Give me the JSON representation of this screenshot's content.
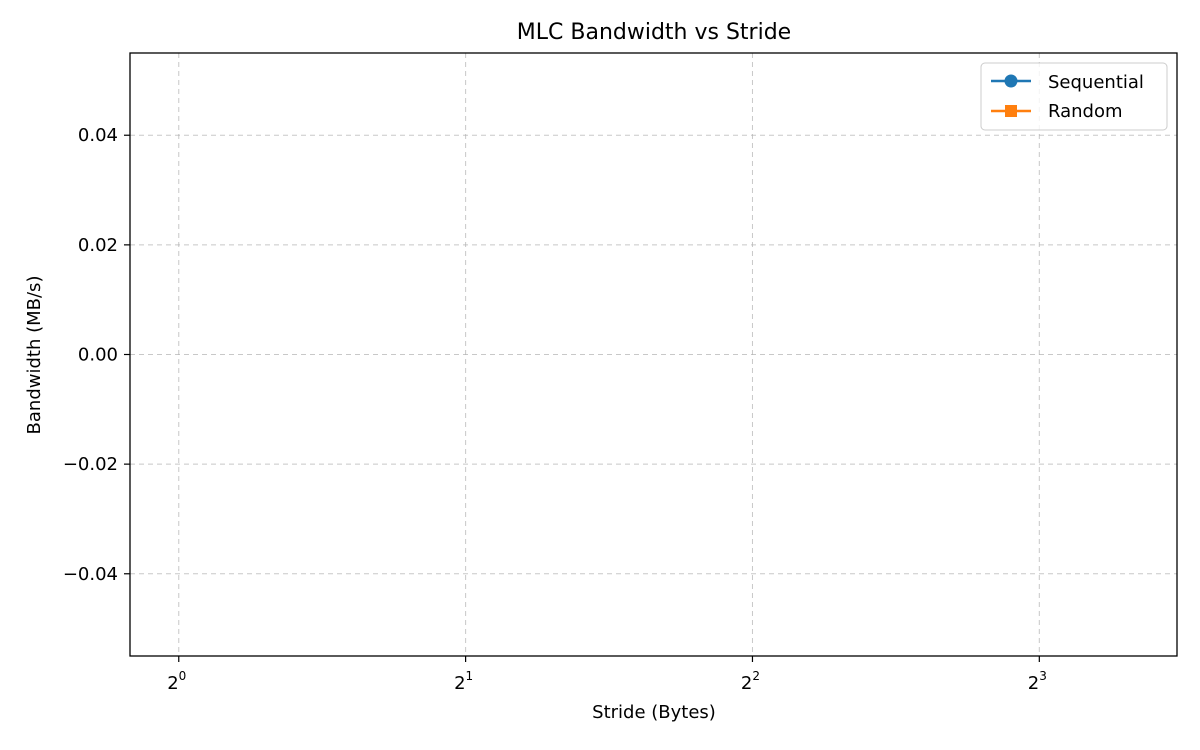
{
  "chart_data": {
    "type": "line",
    "title": "MLC Bandwidth vs Stride",
    "xlabel": "Stride (Bytes)",
    "ylabel": "Bandwidth (MB/s)",
    "x_scale": "log2",
    "x_ticks": [
      {
        "base": "2",
        "exp": "0"
      },
      {
        "base": "2",
        "exp": "1"
      },
      {
        "base": "2",
        "exp": "2"
      },
      {
        "base": "2",
        "exp": "3"
      }
    ],
    "y_ticks": [
      "0.04",
      "0.02",
      "0.00",
      "−0.02",
      "−0.04"
    ],
    "ylim": [
      -0.055,
      0.055
    ],
    "grid": true,
    "legend_position": "top-right",
    "series": [
      {
        "name": "Sequential",
        "color": "#1f77b4",
        "marker": "circle",
        "values": []
      },
      {
        "name": "Random",
        "color": "#ff7f0e",
        "marker": "square",
        "values": []
      }
    ]
  }
}
